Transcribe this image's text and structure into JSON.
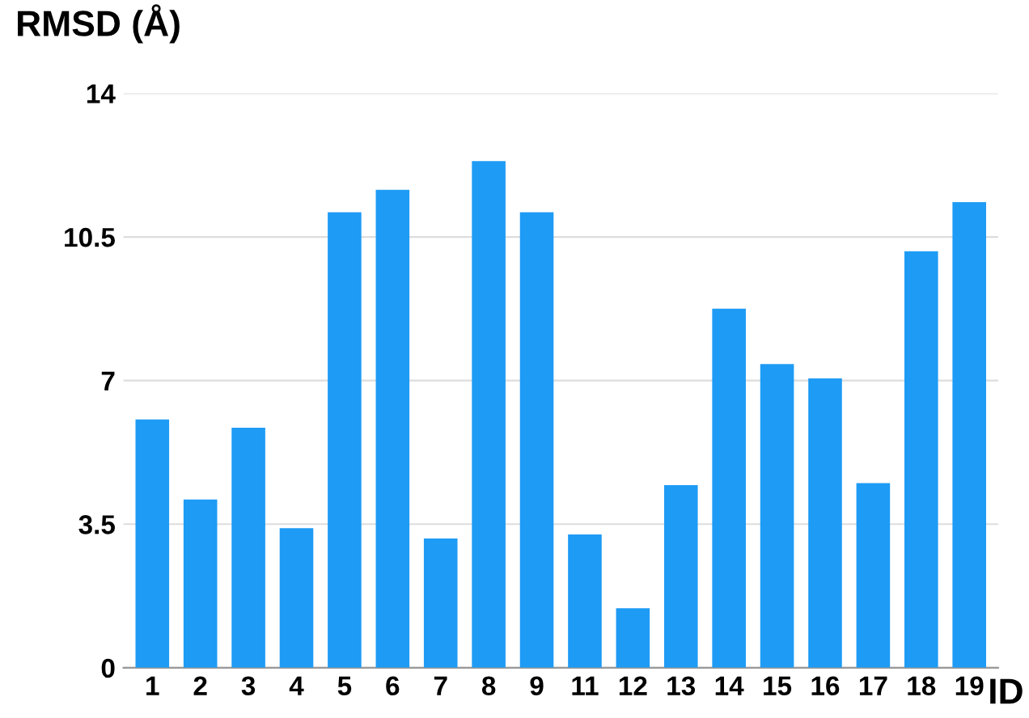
{
  "chart_data": {
    "type": "bar",
    "ylabel": "RMSD (Å)",
    "xlabel": "ID",
    "categories": [
      "1",
      "2",
      "3",
      "4",
      "5",
      "6",
      "7",
      "8",
      "9",
      "11",
      "12",
      "13",
      "14",
      "15",
      "16",
      "17",
      "18",
      "19"
    ],
    "values": [
      6.05,
      4.1,
      5.85,
      3.4,
      11.1,
      11.65,
      3.15,
      12.35,
      11.1,
      3.25,
      1.45,
      4.45,
      8.75,
      7.4,
      7.05,
      4.5,
      10.15,
      11.35
    ],
    "color": "#1e9bf5",
    "ylim": [
      0,
      14
    ],
    "yticks": [
      0,
      3.5,
      7,
      10.5,
      14
    ],
    "grid": "y"
  }
}
